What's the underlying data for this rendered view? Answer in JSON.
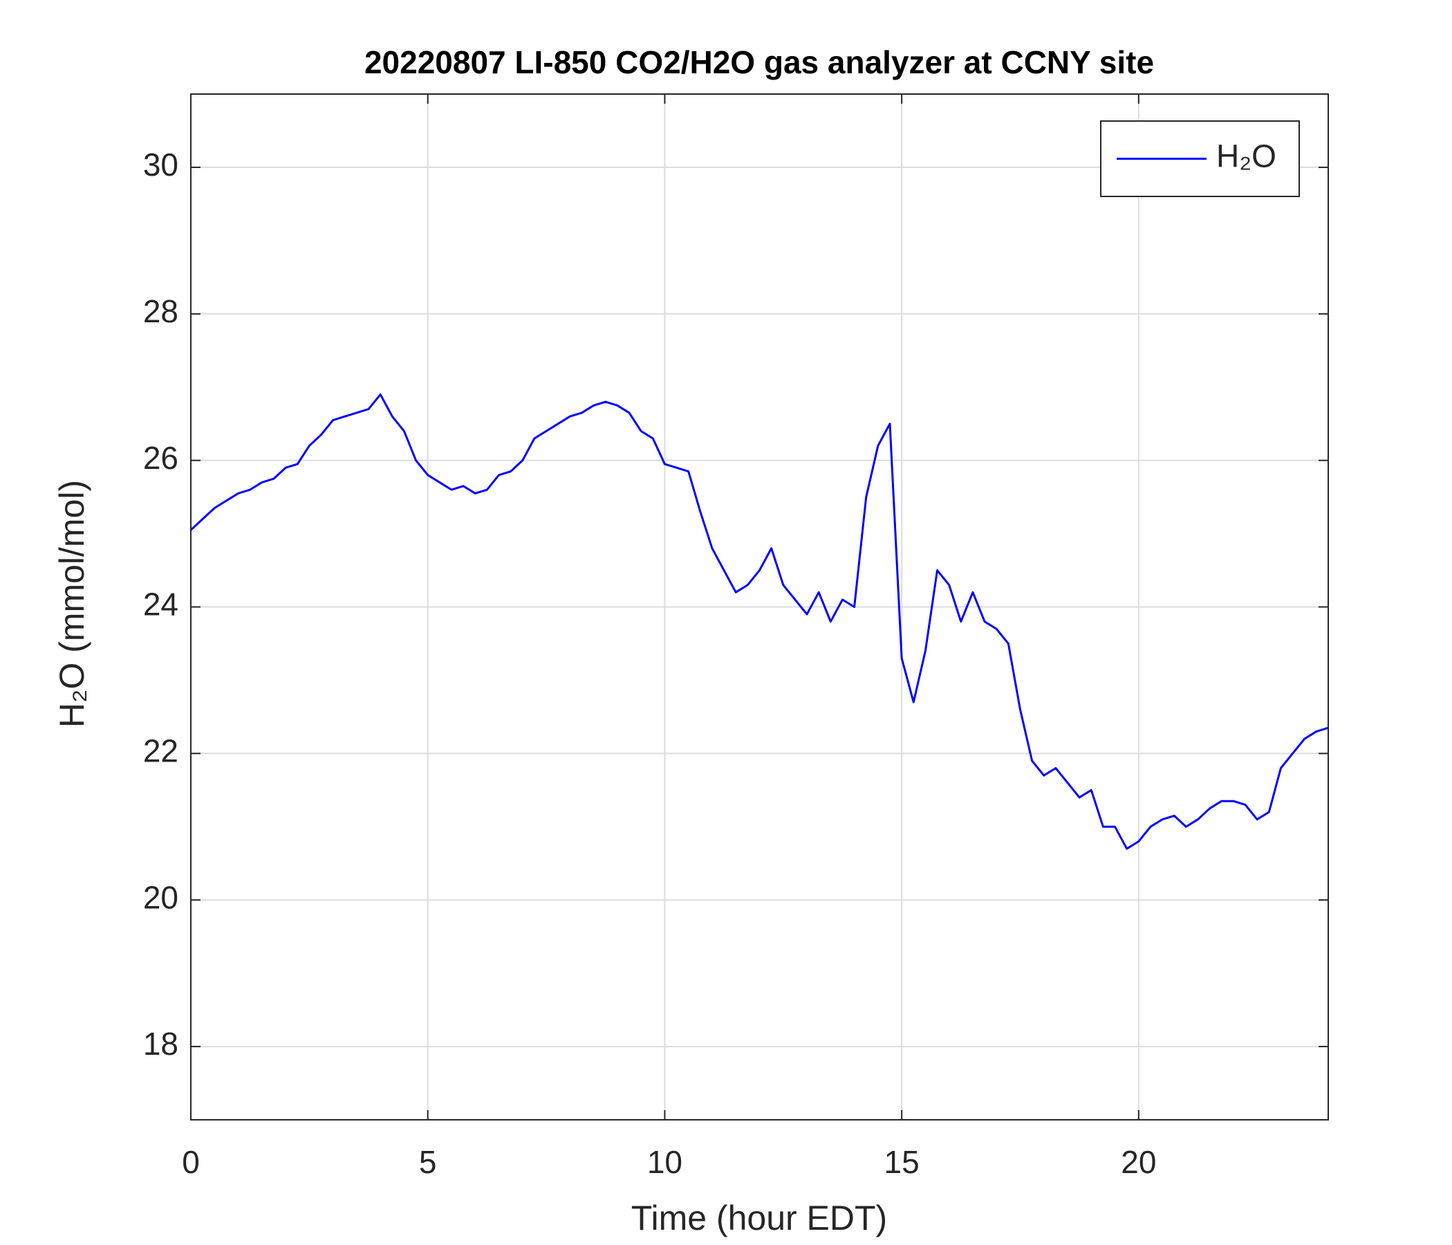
{
  "chart_data": {
    "type": "line",
    "title": "20220807 LI-850 CO2/H2O gas analyzer at CCNY site",
    "xlabel": "Time (hour EDT)",
    "ylabel": "H₂O (mmol/mol)",
    "x": [
      0,
      0.25,
      0.5,
      0.75,
      1,
      1.25,
      1.5,
      1.75,
      2,
      2.25,
      2.5,
      2.75,
      3,
      3.25,
      3.5,
      3.75,
      4,
      4.25,
      4.5,
      4.75,
      5,
      5.25,
      5.5,
      5.75,
      6,
      6.25,
      6.5,
      6.75,
      7,
      7.25,
      7.5,
      7.75,
      8,
      8.25,
      8.5,
      8.75,
      9,
      9.25,
      9.5,
      9.75,
      10,
      10.25,
      10.5,
      10.75,
      11,
      11.25,
      11.5,
      11.75,
      12,
      12.25,
      12.5,
      12.75,
      13,
      13.25,
      13.5,
      13.75,
      14,
      14.25,
      14.5,
      14.75,
      15,
      15.25,
      15.5,
      15.75,
      16,
      16.25,
      16.5,
      16.75,
      17,
      17.25,
      17.5,
      17.75,
      18,
      18.25,
      18.5,
      18.75,
      19,
      19.25,
      19.5,
      19.75,
      20,
      20.25,
      20.5,
      20.75,
      21,
      21.25,
      21.5,
      21.75,
      22,
      22.25,
      22.5,
      22.75,
      23,
      23.25,
      23.5,
      23.75,
      24
    ],
    "series": [
      {
        "name": "H₂O",
        "color": "#0000ff",
        "values": [
          25.05,
          25.2,
          25.35,
          25.45,
          25.55,
          25.6,
          25.7,
          25.75,
          25.9,
          25.95,
          26.2,
          26.35,
          26.55,
          26.6,
          26.65,
          26.7,
          26.9,
          26.6,
          26.4,
          26.0,
          25.8,
          25.7,
          25.6,
          25.65,
          25.55,
          25.6,
          25.8,
          25.85,
          26.0,
          26.3,
          26.4,
          26.5,
          26.6,
          26.65,
          26.75,
          26.8,
          26.75,
          26.65,
          26.4,
          26.3,
          25.95,
          25.9,
          25.85,
          25.3,
          24.8,
          24.5,
          24.2,
          24.3,
          24.5,
          24.8,
          24.3,
          24.1,
          23.9,
          24.2,
          23.8,
          24.1,
          24.0,
          25.5,
          26.2,
          26.5,
          23.3,
          22.7,
          23.4,
          24.5,
          24.3,
          23.8,
          24.2,
          23.8,
          23.7,
          23.5,
          22.6,
          21.9,
          21.7,
          21.8,
          21.6,
          21.4,
          21.5,
          21.0,
          21.0,
          20.7,
          20.8,
          21.0,
          21.1,
          21.15,
          21.0,
          21.1,
          21.25,
          21.35,
          21.35,
          21.3,
          21.1,
          21.2,
          21.8,
          22.0,
          22.2,
          22.3,
          22.35
        ]
      }
    ],
    "xlim": [
      0,
      24
    ],
    "xticks": [
      0,
      5,
      10,
      15,
      20
    ],
    "ylim": [
      17,
      31
    ],
    "yticks": [
      18,
      20,
      22,
      24,
      26,
      28,
      30
    ],
    "grid": true,
    "legend": "upper right"
  }
}
